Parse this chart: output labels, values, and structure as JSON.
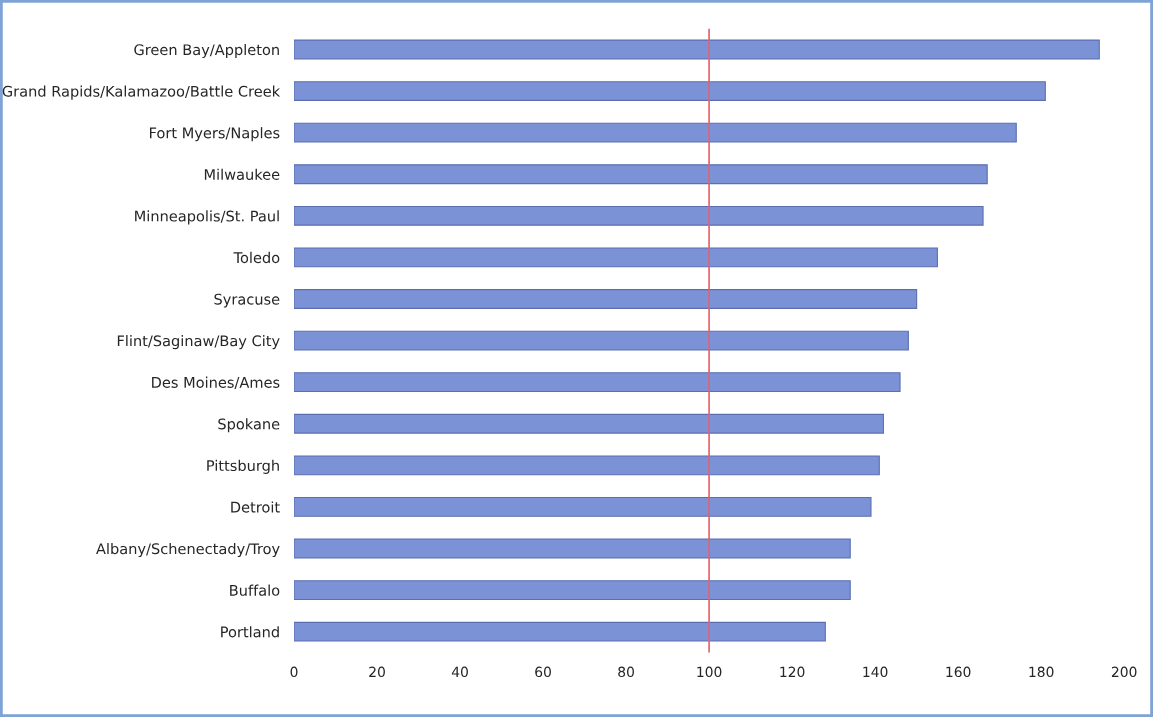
{
  "chart_data": {
    "type": "bar",
    "orientation": "horizontal",
    "categories": [
      "Green Bay/Appleton",
      "Grand Rapids/Kalamazoo/Battle Creek",
      "Fort Myers/Naples",
      "Milwaukee",
      "Minneapolis/St. Paul",
      "Toledo",
      "Syracuse",
      "Flint/Saginaw/Bay City",
      "Des Moines/Ames",
      "Spokane",
      "Pittsburgh",
      "Detroit",
      "Albany/Schenectady/Troy",
      "Buffalo",
      "Portland"
    ],
    "values": [
      194,
      181,
      174,
      167,
      166,
      155,
      150,
      148,
      146,
      142,
      141,
      139,
      134,
      134,
      128
    ],
    "color": "#7b93d6",
    "xlim": [
      0,
      200
    ],
    "xticks": [
      0,
      20,
      40,
      60,
      80,
      100,
      120,
      140,
      160,
      180,
      200
    ],
    "grid": false,
    "legend": false,
    "ref_lines": [
      {
        "axis": "x",
        "value": 100,
        "color": "#e8606a"
      }
    ]
  }
}
